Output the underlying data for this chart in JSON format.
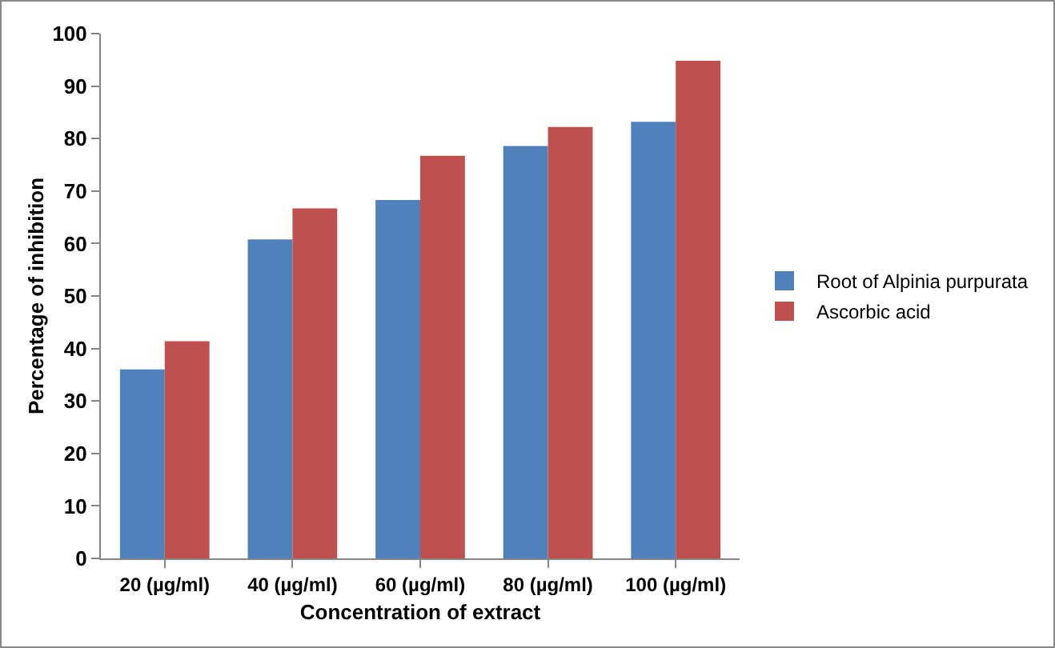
{
  "chart_data": {
    "type": "bar",
    "xlabel": "Concentration of extract",
    "ylabel": "Percentage of inhibition",
    "categories": [
      "20 (µg/ml)",
      "40 (µg/ml)",
      "60 (µg/ml)",
      "80 (µg/ml)",
      "100 (µg/ml)"
    ],
    "series": [
      {
        "name": "Root of Alpinia purpurata",
        "color": "#4f81bd",
        "values": [
          36,
          60.8,
          68.3,
          78.6,
          83.2
        ]
      },
      {
        "name": "Ascorbic acid",
        "color": "#c0504d",
        "values": [
          41.4,
          66.7,
          76.7,
          82.2,
          94.8
        ]
      }
    ],
    "ylim": [
      0,
      100
    ],
    "yticks": [
      0,
      10,
      20,
      30,
      40,
      50,
      60,
      70,
      80,
      90,
      100
    ],
    "grid": false,
    "legend": "right"
  }
}
